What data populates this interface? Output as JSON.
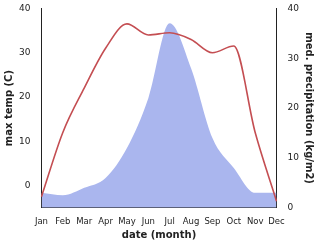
{
  "chart_data": {
    "type": "line",
    "xlabel": "date (month)",
    "ylabel": "max temp (C)",
    "y2label": "med. precipitation (kg/m2)",
    "categories": [
      "Jan",
      "Feb",
      "Mar",
      "Apr",
      "May",
      "Jun",
      "Jul",
      "Aug",
      "Sep",
      "Oct",
      "Nov",
      "Dec"
    ],
    "series": [
      {
        "name": "med. precipitation (kg/m2)",
        "type": "area",
        "axis": "y2",
        "color": "#aab6ee",
        "values": [
          3,
          2.5,
          4,
          6,
          12,
          22,
          37,
          28,
          14,
          8,
          3,
          3
        ]
      },
      {
        "name": "max temp (C)",
        "type": "line",
        "color": "#c44e52",
        "marker": "none",
        "values": [
          -2.5,
          12,
          22,
          31,
          36.5,
          34,
          34.5,
          33,
          30,
          31.5,
          12,
          -3.5
        ]
      }
    ],
    "ylim": [
      -5,
      40
    ],
    "yticks": [
      0,
      10,
      20,
      30,
      40
    ],
    "y2lim": [
      0,
      40
    ],
    "y2ticks": [
      0,
      10,
      20,
      30,
      40
    ],
    "grid": false
  }
}
